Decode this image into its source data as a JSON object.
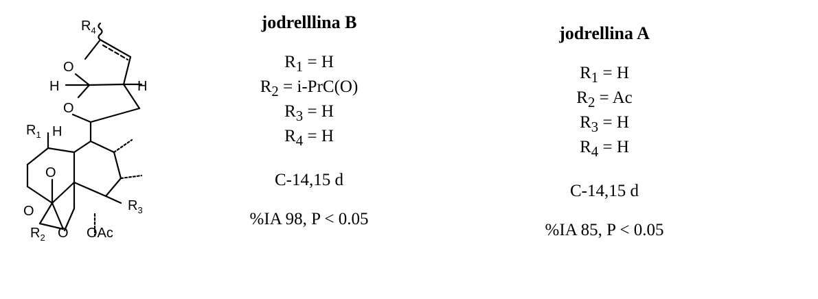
{
  "structure": {
    "labels": {
      "r4": "R",
      "r4_sub": "4",
      "r1": "R",
      "r1_sub": "1",
      "r2": "R",
      "r2_sub": "2",
      "r3": "R",
      "r3_sub": "3",
      "o_furan": "O",
      "o_tetrahydrofuran": "O",
      "o_ether_bridge": "O",
      "o_epoxide": "O",
      "o_ester": "O",
      "h_left": "H",
      "h_right": "H",
      "h_lower": "H",
      "oac": "OAc"
    }
  },
  "compounds": [
    {
      "name": "jodrelllina B",
      "substituents": [
        {
          "r": "R",
          "sub": "1",
          "value": "= H"
        },
        {
          "r": "R",
          "sub": "2",
          "value": "= i-PrC(O)"
        },
        {
          "r": "R",
          "sub": "3",
          "value": "= H"
        },
        {
          "r": "R",
          "sub": "4",
          "value": "= H"
        }
      ],
      "position": "C-14,15 d",
      "activity": "%IA 98, P < 0.05"
    },
    {
      "name": "jodrellina A",
      "substituents": [
        {
          "r": "R",
          "sub": "1",
          "value": "= H"
        },
        {
          "r": "R",
          "sub": "2",
          "value": "= Ac"
        },
        {
          "r": "R",
          "sub": "3",
          "value": "= H"
        },
        {
          "r": "R",
          "sub": "4",
          "value": "= H"
        }
      ],
      "position": "C-14,15 d",
      "activity": "%IA 85, P < 0.05"
    }
  ]
}
